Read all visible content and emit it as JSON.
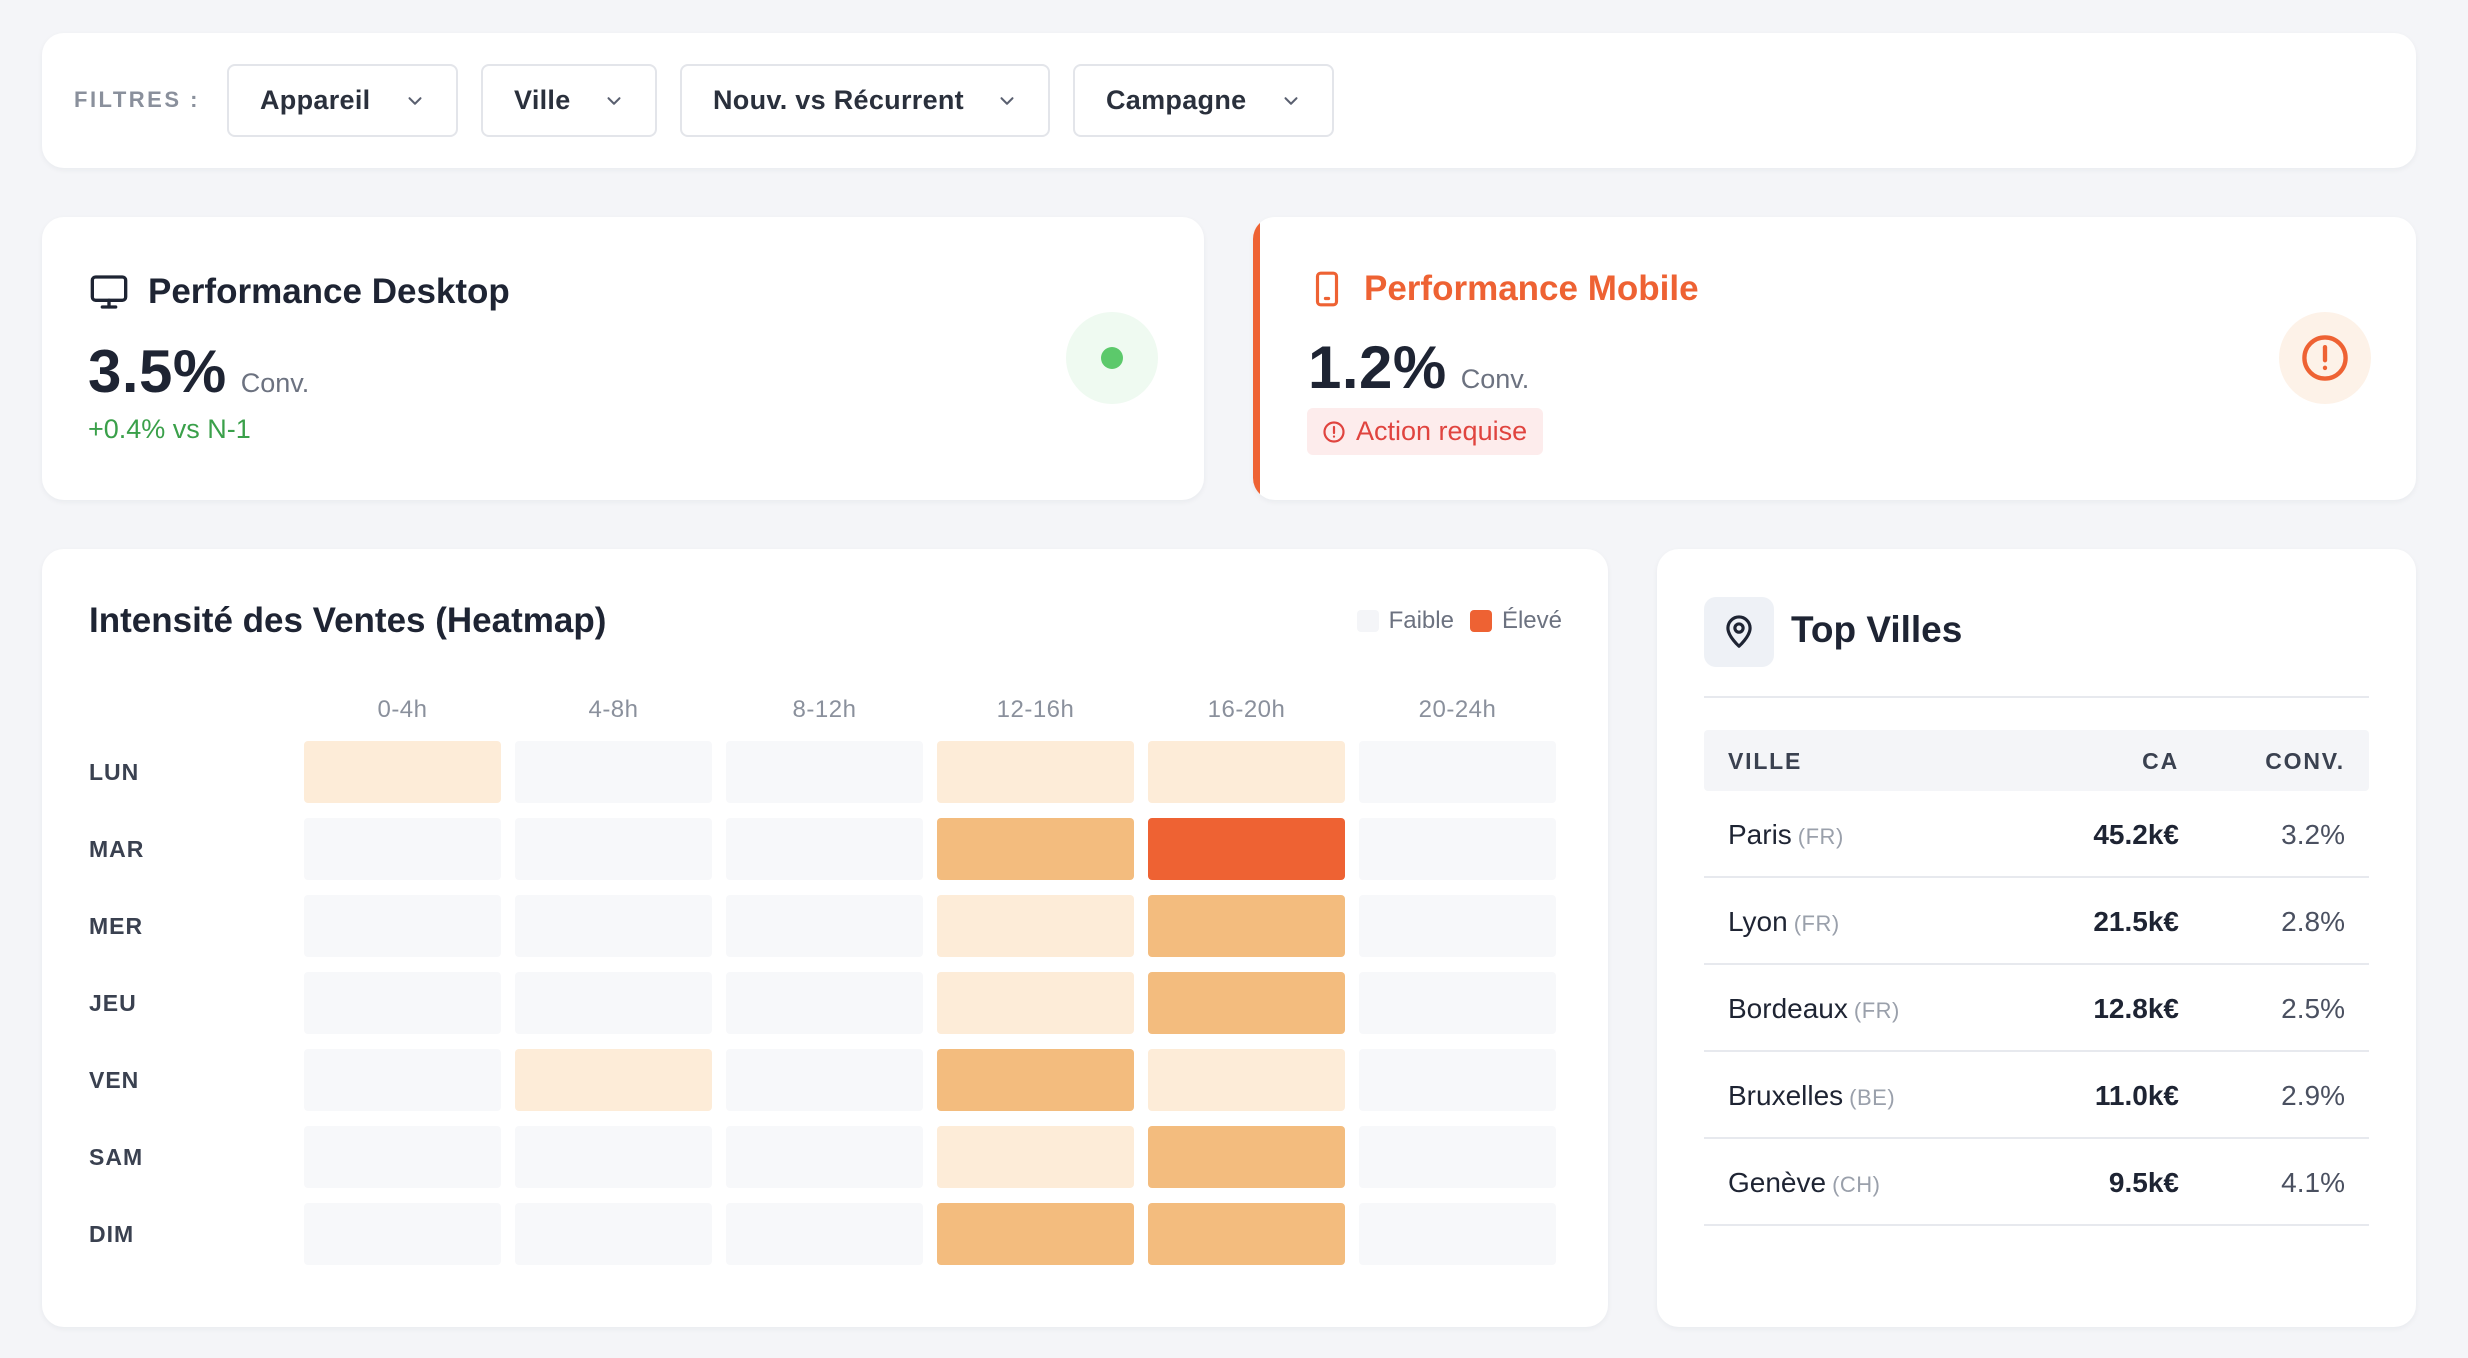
{
  "filters": {
    "label": "FILTRES :",
    "items": [
      {
        "label": "Appareil"
      },
      {
        "label": "Ville"
      },
      {
        "label": "Nouv. vs Récurrent"
      },
      {
        "label": "Campagne"
      }
    ]
  },
  "kpi_desktop": {
    "title": "Performance Desktop",
    "value": "3.5%",
    "unit": "Conv.",
    "delta": "+0.4% vs N-1",
    "icon": "monitor-icon",
    "status_color": "#5cc96b"
  },
  "kpi_mobile": {
    "title": "Performance Mobile",
    "value": "1.2%",
    "unit": "Conv.",
    "badge": "Action requise",
    "icon": "smartphone-icon",
    "accent_color": "#ee6233"
  },
  "heatmap": {
    "title": "Intensité des Ventes (Heatmap)",
    "legend": {
      "low": "Faible",
      "high": "Élevé"
    },
    "chart_data": {
      "type": "heatmap",
      "title": "Intensité des Ventes (Heatmap)",
      "x": [
        "0-4h",
        "4-8h",
        "8-12h",
        "12-16h",
        "16-20h",
        "20-24h"
      ],
      "y": [
        "LUN",
        "MAR",
        "MER",
        "JEU",
        "VEN",
        "SAM",
        "DIM"
      ],
      "levels": [
        [
          1,
          0,
          0,
          1,
          1,
          0
        ],
        [
          0,
          0,
          0,
          2,
          3,
          0
        ],
        [
          0,
          0,
          0,
          1,
          2,
          0
        ],
        [
          0,
          0,
          0,
          1,
          2,
          0
        ],
        [
          0,
          1,
          0,
          2,
          1,
          0
        ],
        [
          0,
          0,
          0,
          1,
          2,
          0
        ],
        [
          0,
          0,
          0,
          2,
          2,
          0
        ]
      ],
      "level_scale": [
        "Faible",
        "Élevé"
      ],
      "colors": [
        "#f7f8fa",
        "#fdecd8",
        "#f3bc7e",
        "#ee6233"
      ]
    }
  },
  "cities": {
    "title": "Top Villes",
    "columns": {
      "ville": "VILLE",
      "ca": "CA",
      "conv": "CONV."
    },
    "rows": [
      {
        "city": "Paris",
        "country": "(FR)",
        "ca": "45.2k€",
        "conv": "3.2%"
      },
      {
        "city": "Lyon",
        "country": "(FR)",
        "ca": "21.5k€",
        "conv": "2.8%"
      },
      {
        "city": "Bordeaux",
        "country": "(FR)",
        "ca": "12.8k€",
        "conv": "2.5%"
      },
      {
        "city": "Bruxelles",
        "country": "(BE)",
        "ca": "11.0k€",
        "conv": "2.9%"
      },
      {
        "city": "Genève",
        "country": "(CH)",
        "ca": "9.5k€",
        "conv": "4.1%"
      }
    ]
  }
}
